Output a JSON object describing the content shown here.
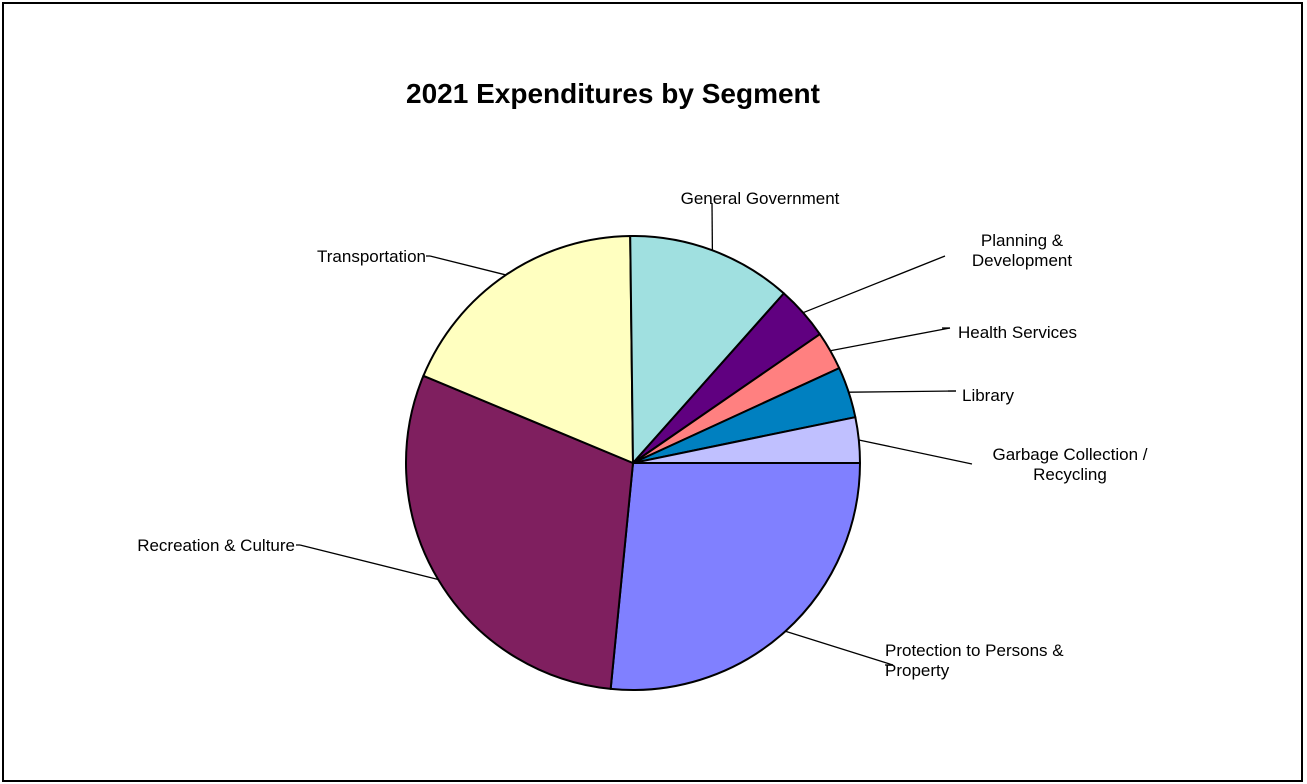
{
  "chart_data": {
    "type": "pie",
    "title": "2021 Expenditures by Segment",
    "slices": [
      {
        "label": "Protection to Persons & Property",
        "lines": [
          "Protection to Persons &",
          "Property"
        ],
        "value": 27.1,
        "color": "#8080FF"
      },
      {
        "label": "Recreation & Culture",
        "lines": [
          "Recreation & Culture"
        ],
        "value": 30.3,
        "color": "#7F1F5F"
      },
      {
        "label": "Transportation",
        "lines": [
          "Transportation"
        ],
        "value": 18.9,
        "color": "#FFFFC0"
      },
      {
        "label": "General Government",
        "lines": [
          "General Government"
        ],
        "value": 12.0,
        "color": "#A0E0E0"
      },
      {
        "label": "Planning & Development",
        "lines": [
          "Planning &",
          "Development"
        ],
        "value": 3.9,
        "color": "#600080"
      },
      {
        "label": "Health Services",
        "lines": [
          "Health Services"
        ],
        "value": 2.8,
        "color": "#FF8080"
      },
      {
        "label": "Library",
        "lines": [
          "Library"
        ],
        "value": 3.7,
        "color": "#0080C0"
      },
      {
        "label": "Garbage Collection / Recycling",
        "lines": [
          "Garbage Collection /",
          "Recycling"
        ],
        "value": 3.3,
        "color": "#C0C0FF"
      }
    ],
    "start_angle_deg": 0,
    "direction": "clockwise",
    "legend": "none",
    "data_labels": "category-name-with-leader-lines"
  }
}
